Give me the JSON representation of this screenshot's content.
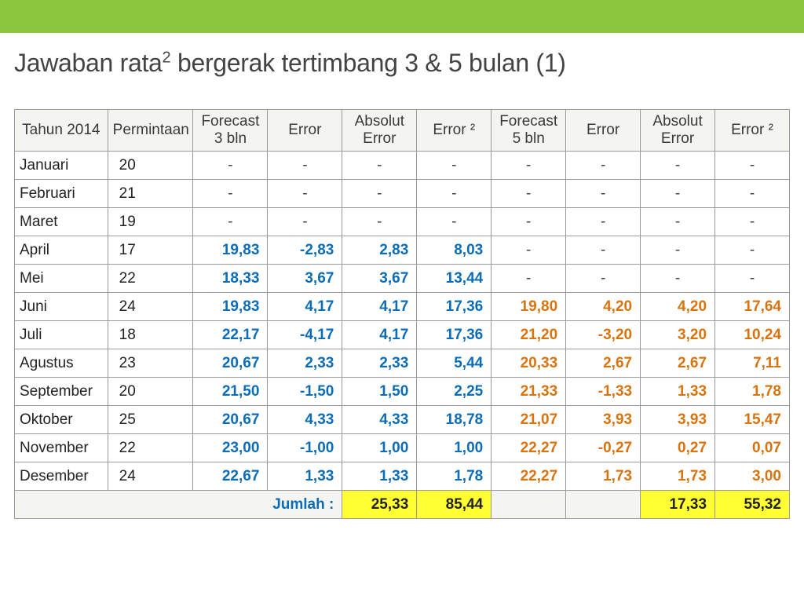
{
  "colors": {
    "accent_bar": "#8cc63f",
    "header_bg": "#f4f5f0",
    "border": "#9a9a9a",
    "text": "#222222",
    "blue": "#0b6cb8",
    "orange": "#d8730d",
    "sum_highlight": "#ffff33"
  },
  "title_parts": {
    "a": "Jawaban rata",
    "sup": "2",
    "b": " bergerak tertimbang 3 & 5 bulan (1)"
  },
  "table": {
    "headers": [
      "Tahun 2014",
      "Permintaan",
      "Forecast 3 bln",
      "Error",
      "Absolut Error",
      "Error ²",
      "Forecast 5 bln",
      "Error",
      "Absolut Error",
      "Error ²"
    ],
    "rows": [
      {
        "month": "Januari",
        "perm": "20",
        "f3": "-",
        "e3": "-",
        "ae3": "-",
        "e3sq": "-",
        "f5": "-",
        "e5": "-",
        "ae5": "-",
        "e5sq": "-"
      },
      {
        "month": "Februari",
        "perm": "21",
        "f3": "-",
        "e3": "-",
        "ae3": "-",
        "e3sq": "-",
        "f5": "-",
        "e5": "-",
        "ae5": "-",
        "e5sq": "-"
      },
      {
        "month": "Maret",
        "perm": "19",
        "f3": "-",
        "e3": "-",
        "ae3": "-",
        "e3sq": "-",
        "f5": "-",
        "e5": "-",
        "ae5": "-",
        "e5sq": "-"
      },
      {
        "month": "April",
        "perm": "17",
        "f3": "19,83",
        "e3": "-2,83",
        "ae3": "2,83",
        "e3sq": "8,03",
        "f5": "-",
        "e5": "-",
        "ae5": "-",
        "e5sq": "-"
      },
      {
        "month": "Mei",
        "perm": "22",
        "f3": "18,33",
        "e3": "3,67",
        "ae3": "3,67",
        "e3sq": "13,44",
        "f5": "-",
        "e5": "-",
        "ae5": "-",
        "e5sq": "-"
      },
      {
        "month": "Juni",
        "perm": "24",
        "f3": "19,83",
        "e3": "4,17",
        "ae3": "4,17",
        "e3sq": "17,36",
        "f5": "19,80",
        "e5": "4,20",
        "ae5": "4,20",
        "e5sq": "17,64"
      },
      {
        "month": "Juli",
        "perm": "18",
        "f3": "22,17",
        "e3": "-4,17",
        "ae3": "4,17",
        "e3sq": "17,36",
        "f5": "21,20",
        "e5": "-3,20",
        "ae5": "3,20",
        "e5sq": "10,24"
      },
      {
        "month": "Agustus",
        "perm": "23",
        "f3": "20,67",
        "e3": "2,33",
        "ae3": "2,33",
        "e3sq": "5,44",
        "f5": "20,33",
        "e5": "2,67",
        "ae5": "2,67",
        "e5sq": "7,11"
      },
      {
        "month": "September",
        "perm": "20",
        "f3": "21,50",
        "e3": "-1,50",
        "ae3": "1,50",
        "e3sq": "2,25",
        "f5": "21,33",
        "e5": "-1,33",
        "ae5": "1,33",
        "e5sq": "1,78"
      },
      {
        "month": "Oktober",
        "perm": "25",
        "f3": "20,67",
        "e3": "4,33",
        "ae3": "4,33",
        "e3sq": "18,78",
        "f5": "21,07",
        "e5": "3,93",
        "ae5": "3,93",
        "e5sq": "15,47"
      },
      {
        "month": "November",
        "perm": "22",
        "f3": "23,00",
        "e3": "-1,00",
        "ae3": "1,00",
        "e3sq": "1,00",
        "f5": "22,27",
        "e5": "-0,27",
        "ae5": "0,27",
        "e5sq": "0,07"
      },
      {
        "month": "Desember",
        "perm": "24",
        "f3": "22,67",
        "e3": "1,33",
        "ae3": "1,33",
        "e3sq": "1,78",
        "f5": "22,27",
        "e5": "1,73",
        "ae5": "1,73",
        "e5sq": "3,00"
      }
    ],
    "sum": {
      "label": "Jumlah :",
      "ae3": "25,33",
      "e3sq": "85,44",
      "ae5": "17,33",
      "e5sq": "55,32"
    }
  }
}
